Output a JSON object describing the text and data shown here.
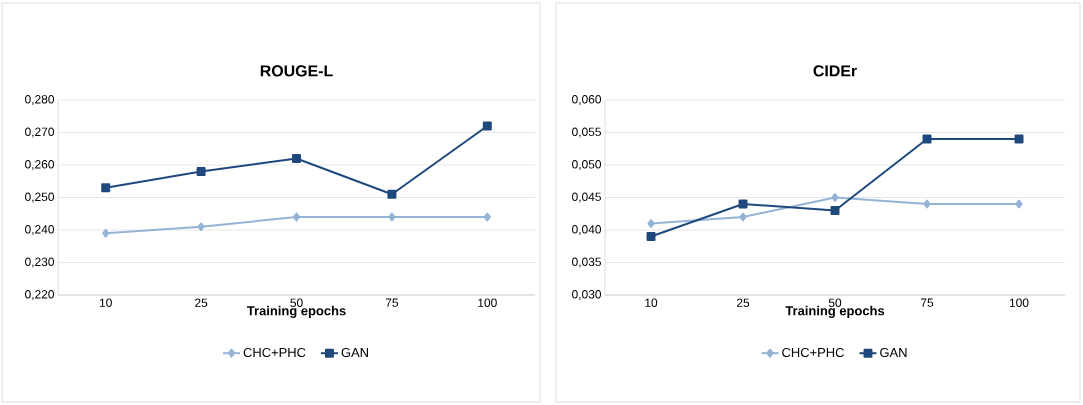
{
  "chart_data": [
    {
      "type": "line",
      "title": "ROUGE-L",
      "xlabel": "Training epochs",
      "categories": [
        "10",
        "25",
        "50",
        "75",
        "100"
      ],
      "series": [
        {
          "name": "CHC+PHC",
          "color": "#95b3d7",
          "marker": "diamond",
          "values": [
            0.239,
            0.241,
            0.244,
            0.244,
            0.244
          ]
        },
        {
          "name": "GAN",
          "color": "#1f497d",
          "marker": "square",
          "values": [
            0.253,
            0.258,
            0.262,
            0.251,
            0.272
          ]
        }
      ],
      "ylim": [
        0.22,
        0.28
      ],
      "yticks": [
        {
          "value": 0.22,
          "label": "0,220"
        },
        {
          "value": 0.23,
          "label": "0,230"
        },
        {
          "value": 0.24,
          "label": "0,240"
        },
        {
          "value": 0.25,
          "label": "0,250"
        },
        {
          "value": 0.26,
          "label": "0,260"
        },
        {
          "value": 0.27,
          "label": "0,270"
        },
        {
          "value": 0.28,
          "label": "0,280"
        }
      ],
      "grid": "y",
      "legend": "bottom",
      "line_style": "solid"
    },
    {
      "type": "line",
      "title": "CIDEr",
      "xlabel": "Training epochs",
      "categories": [
        "10",
        "25",
        "50",
        "75",
        "100"
      ],
      "series": [
        {
          "name": "CHC+PHC",
          "color": "#95b3d7",
          "marker": "diamond",
          "values": [
            0.041,
            0.042,
            0.045,
            0.044,
            0.044
          ]
        },
        {
          "name": "GAN",
          "color": "#1f497d",
          "marker": "square",
          "values": [
            0.039,
            0.044,
            0.043,
            0.054,
            0.054
          ]
        }
      ],
      "ylim": [
        0.03,
        0.06
      ],
      "yticks": [
        {
          "value": 0.03,
          "label": "0,030"
        },
        {
          "value": 0.035,
          "label": "0,035"
        },
        {
          "value": 0.04,
          "label": "0,040"
        },
        {
          "value": 0.045,
          "label": "0,045"
        },
        {
          "value": 0.05,
          "label": "0,050"
        },
        {
          "value": 0.055,
          "label": "0,055"
        },
        {
          "value": 0.06,
          "label": "0,060"
        }
      ],
      "grid": "y",
      "legend": "bottom",
      "line_style": "solid"
    }
  ]
}
